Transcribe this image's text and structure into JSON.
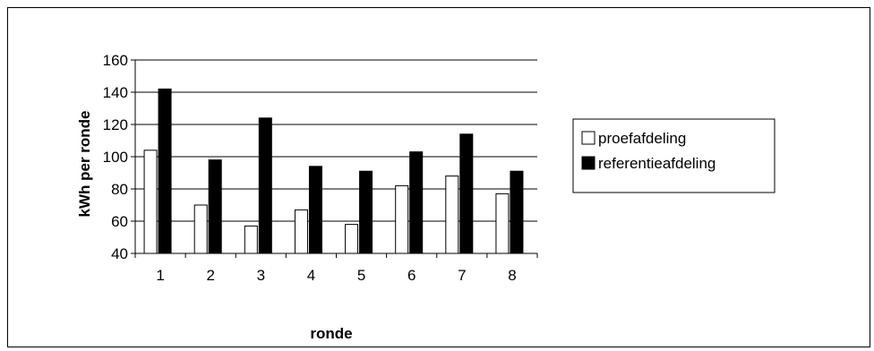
{
  "chart_data": {
    "type": "bar",
    "title": "",
    "xlabel": "ronde",
    "ylabel": "kWh per ronde",
    "categories": [
      "1",
      "2",
      "3",
      "4",
      "5",
      "6",
      "7",
      "8"
    ],
    "ylim": [
      40,
      160
    ],
    "yticks": [
      40,
      60,
      80,
      100,
      120,
      140,
      160
    ],
    "grid": true,
    "legend": "right",
    "series": [
      {
        "name": "proefafdeling",
        "color": "#ffffff",
        "values": [
          104,
          70,
          57,
          67,
          58,
          82,
          88,
          77
        ]
      },
      {
        "name": "referentieafdeling",
        "color": "#000000",
        "values": [
          142,
          98,
          124,
          94,
          91,
          103,
          114,
          91
        ]
      }
    ]
  }
}
